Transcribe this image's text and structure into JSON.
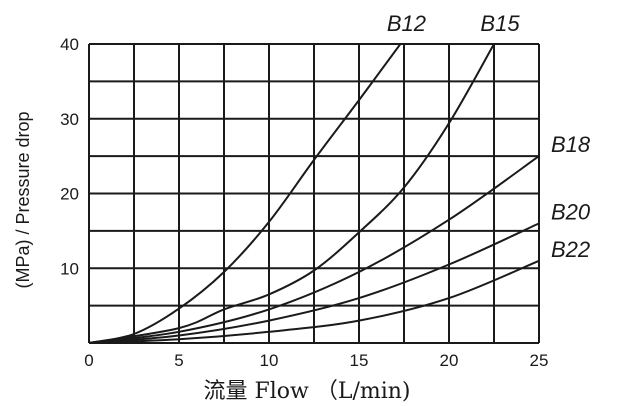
{
  "chart_data": {
    "type": "line",
    "xlabel": "流量 Flow （L/min)",
    "ylabel": "(MPa) / Pressure drop",
    "xlim": [
      0,
      25
    ],
    "ylim": [
      0,
      40
    ],
    "x_ticks": [
      "0",
      "5",
      "10",
      "15",
      "20",
      "25"
    ],
    "y_ticks": [
      "10",
      "20",
      "30",
      "40"
    ],
    "grid": true,
    "series": [
      {
        "name": "B12",
        "x": [
          0,
          2.5,
          5,
          7.5,
          10,
          12.5,
          15,
          17.3
        ],
        "y": [
          0,
          1.2,
          4.6,
          9.5,
          16.2,
          24.5,
          32.5,
          40
        ]
      },
      {
        "name": "B15",
        "x": [
          0,
          5,
          7.5,
          10,
          12.5,
          15,
          17.5,
          20,
          22.5
        ],
        "y": [
          0,
          2,
          4.5,
          6.5,
          9.7,
          14.8,
          20.8,
          29.4,
          40
        ]
      },
      {
        "name": "B18",
        "x": [
          0,
          5,
          10,
          15,
          20,
          25
        ],
        "y": [
          0,
          1.5,
          4.5,
          9.5,
          16.5,
          25
        ]
      },
      {
        "name": "B20",
        "x": [
          0,
          5,
          10,
          15,
          20,
          25
        ],
        "y": [
          0,
          1,
          3,
          6,
          10.5,
          16
        ]
      },
      {
        "name": "B22",
        "x": [
          0,
          5,
          10,
          15,
          20,
          25
        ],
        "y": [
          0,
          0.5,
          1.5,
          3,
          6,
          11
        ]
      }
    ]
  }
}
